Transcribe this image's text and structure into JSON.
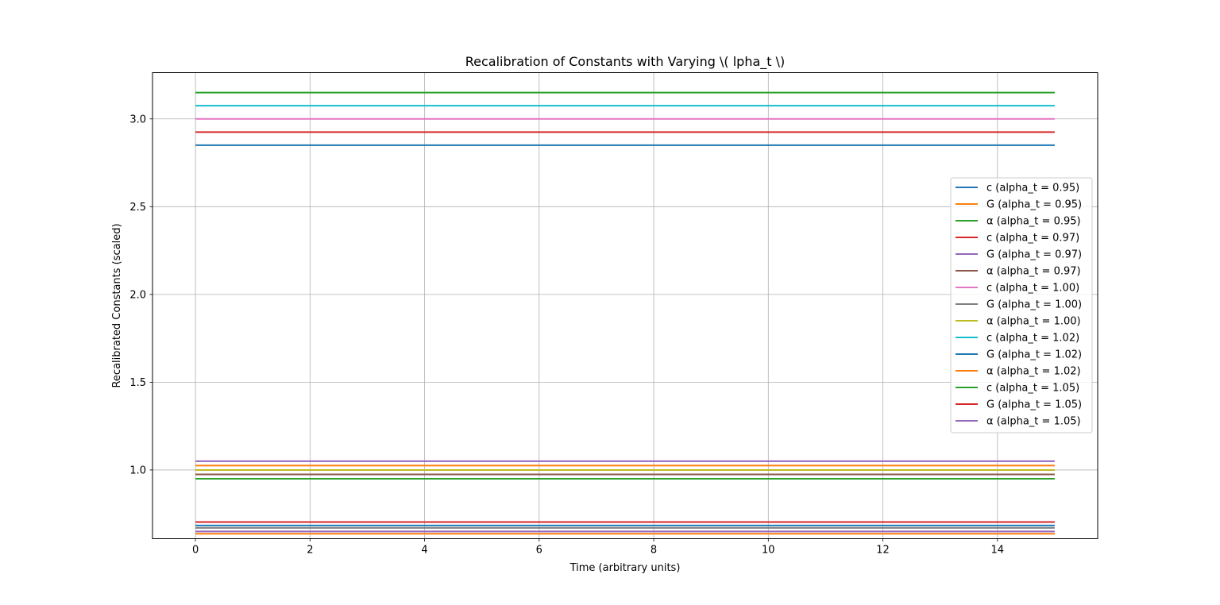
{
  "chart_data": {
    "type": "line",
    "title": "Recalibration of Constants with Varying \\( \u0007lpha_t \\)",
    "xlabel": "Time (arbitrary units)",
    "ylabel": "Recalibrated Constants (scaled)",
    "xlim": [
      -0.75,
      15.75
    ],
    "ylim": [
      0.6085,
      3.2635
    ],
    "xticks": [
      0,
      2,
      4,
      6,
      8,
      10,
      12,
      14
    ],
    "yticks": [
      1.0,
      1.5,
      2.0,
      2.5,
      3.0
    ],
    "ytick_labels": [
      "1.0",
      "1.5",
      "2.0",
      "2.5",
      "3.0"
    ],
    "grid": true,
    "legend_position": "center-right",
    "x": [
      0,
      15
    ],
    "series": [
      {
        "name": "c (alpha_t = 0.95)",
        "color": "#1f77b4",
        "values": [
          2.85,
          2.85
        ]
      },
      {
        "name": "G (alpha_t = 0.95)",
        "color": "#ff7f0e",
        "values": [
          0.6365,
          0.6365
        ]
      },
      {
        "name": "α (alpha_t = 0.95)",
        "color": "#2ca02c",
        "values": [
          0.95,
          0.95
        ]
      },
      {
        "name": "c (alpha_t = 0.97)",
        "color": "#d62728",
        "values": [
          2.925,
          2.925
        ]
      },
      {
        "name": "G (alpha_t = 0.97)",
        "color": "#9467bd",
        "values": [
          0.65,
          0.65
        ]
      },
      {
        "name": "α (alpha_t = 0.97)",
        "color": "#8c564b",
        "values": [
          0.975,
          0.975
        ]
      },
      {
        "name": "c (alpha_t = 1.00)",
        "color": "#e377c2",
        "values": [
          3.0,
          3.0
        ]
      },
      {
        "name": "G (alpha_t = 1.00)",
        "color": "#7f7f7f",
        "values": [
          0.67,
          0.67
        ]
      },
      {
        "name": "α (alpha_t = 1.00)",
        "color": "#bcbd22",
        "values": [
          1.0,
          1.0
        ]
      },
      {
        "name": "c (alpha_t = 1.02)",
        "color": "#17becf",
        "values": [
          3.075,
          3.075
        ]
      },
      {
        "name": "G (alpha_t = 1.02)",
        "color": "#1f77b4",
        "values": [
          0.6835,
          0.6835
        ]
      },
      {
        "name": "α (alpha_t = 1.02)",
        "color": "#ff7f0e",
        "values": [
          1.025,
          1.025
        ]
      },
      {
        "name": "c (alpha_t = 1.05)",
        "color": "#2ca02c",
        "values": [
          3.15,
          3.15
        ]
      },
      {
        "name": "G (alpha_t = 1.05)",
        "color": "#d62728",
        "values": [
          0.7035,
          0.7035
        ]
      },
      {
        "name": "α (alpha_t = 1.05)",
        "color": "#9467bd",
        "values": [
          1.05,
          1.05
        ]
      }
    ]
  }
}
